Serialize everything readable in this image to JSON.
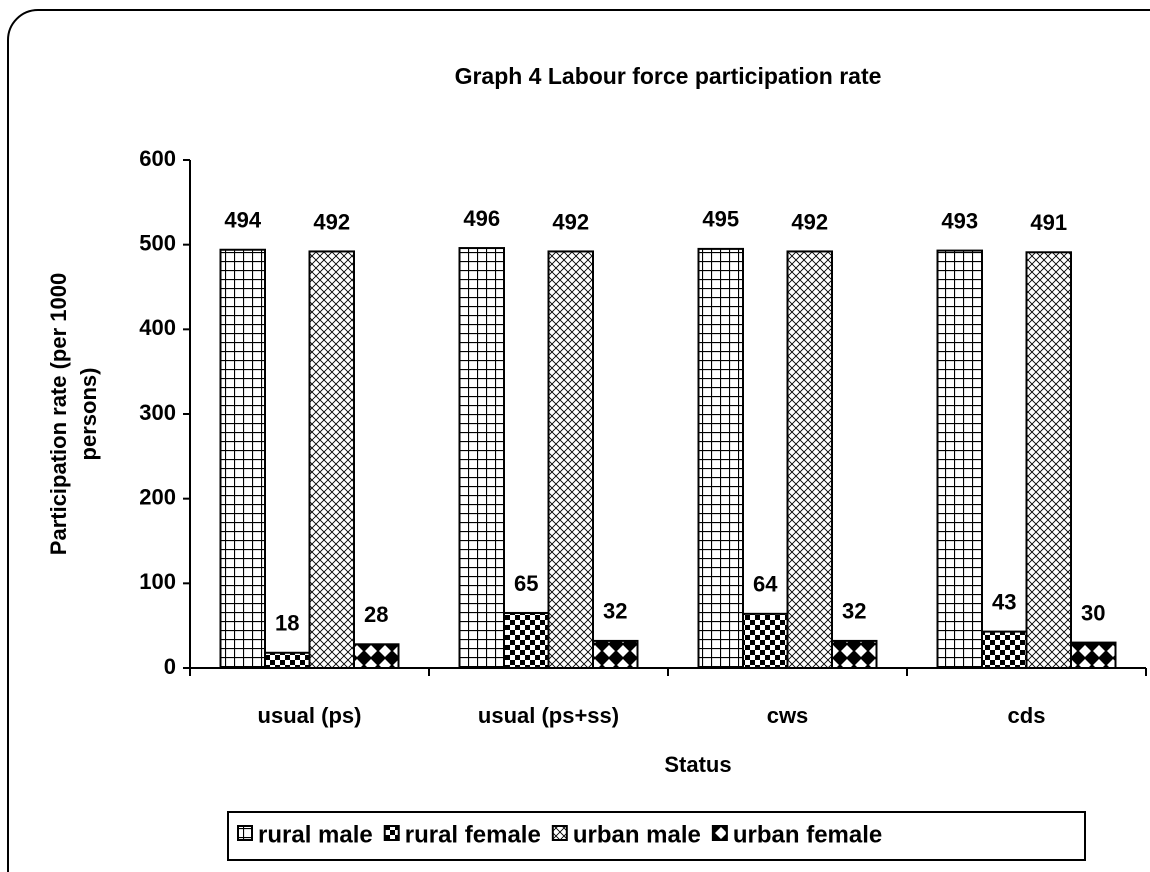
{
  "chart_data": {
    "type": "bar",
    "title": "Graph 4  Labour force participation rate",
    "x_label": "Status",
    "y_label": [
      "Participation rate (per 1000",
      "persons)"
    ],
    "categories": [
      "usual (ps)",
      "usual (ps+ss)",
      "cws",
      "cds"
    ],
    "series": [
      {
        "name": "rural male",
        "color": "#000000",
        "pattern": "grid",
        "values": [
          494,
          496,
          495,
          493
        ]
      },
      {
        "name": "rural female",
        "color": "#000000",
        "pattern": "checker",
        "values": [
          18,
          65,
          64,
          43
        ]
      },
      {
        "name": "urban male",
        "color": "#000000",
        "pattern": "crosshatch",
        "values": [
          492,
          492,
          492,
          491
        ]
      },
      {
        "name": "urban female",
        "color": "#000000",
        "pattern": "diamond",
        "values": [
          28,
          32,
          32,
          30
        ]
      }
    ],
    "ylim": [
      0,
      600
    ],
    "yticks": [
      0,
      100,
      200,
      300,
      400,
      500,
      600
    ],
    "grid": false,
    "legend": "bottom"
  }
}
